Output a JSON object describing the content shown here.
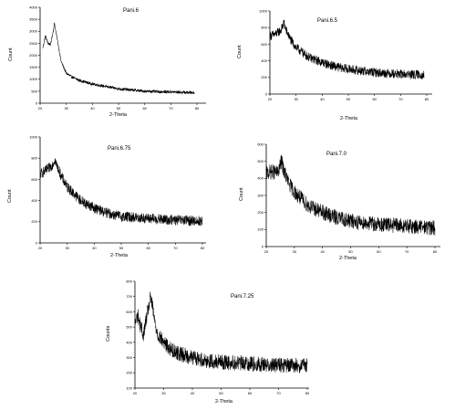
{
  "chart_data": [
    {
      "type": "line",
      "title": "Pani.6",
      "xlabel": "2-Theta",
      "ylabel": "Count",
      "xlim": [
        20,
        80
      ],
      "ylim": [
        0,
        4000
      ],
      "xticks": [
        20,
        30,
        40,
        50,
        60,
        70,
        80
      ],
      "yticks": [
        0,
        500,
        1000,
        1500,
        2000,
        2500,
        3000,
        3500,
        4000
      ],
      "x": [
        21,
        22,
        23,
        24,
        25,
        25.5,
        26,
        27,
        28,
        29,
        30,
        32,
        35,
        40,
        45,
        50,
        55,
        60,
        65,
        70,
        75,
        79
      ],
      "y": [
        2300,
        2800,
        2500,
        2450,
        3000,
        3350,
        3000,
        2400,
        1750,
        1500,
        1250,
        1100,
        950,
        800,
        700,
        600,
        550,
        500,
        480,
        470,
        450,
        440
      ],
      "noise": 60
    },
    {
      "type": "line",
      "title": "Pani.6.5",
      "xlabel": "2-Theta",
      "ylabel": "Count",
      "xlim": [
        20,
        80
      ],
      "ylim": [
        0,
        1000
      ],
      "xticks": [
        20,
        30,
        40,
        50,
        60,
        70,
        80
      ],
      "yticks": [
        0,
        200,
        400,
        600,
        800,
        1000
      ],
      "x": [
        20,
        22,
        24,
        25,
        25.5,
        26,
        28,
        30,
        35,
        40,
        45,
        50,
        55,
        60,
        65,
        70,
        75,
        79
      ],
      "y": [
        700,
        720,
        760,
        820,
        860,
        780,
        650,
        560,
        440,
        380,
        330,
        300,
        280,
        260,
        250,
        240,
        235,
        230
      ],
      "noise": 55
    },
    {
      "type": "line",
      "title": "Pani.6.75",
      "xlabel": "2-Theta",
      "ylabel": "Count",
      "xlim": [
        20,
        80
      ],
      "ylim": [
        0,
        1000
      ],
      "xticks": [
        20,
        30,
        40,
        50,
        60,
        70,
        80
      ],
      "yticks": [
        0,
        200,
        400,
        600,
        800,
        1000
      ],
      "x": [
        20,
        22,
        24,
        25,
        25.5,
        26,
        28,
        30,
        35,
        40,
        45,
        50,
        55,
        60,
        65,
        70,
        75,
        80
      ],
      "y": [
        650,
        680,
        720,
        760,
        790,
        740,
        620,
        530,
        400,
        330,
        280,
        250,
        240,
        230,
        220,
        215,
        210,
        205
      ],
      "noise": 50
    },
    {
      "type": "line",
      "title": "Pani.7.0",
      "xlabel": "2-Theta",
      "ylabel": "Count",
      "xlim": [
        20,
        80
      ],
      "ylim": [
        0,
        600
      ],
      "xticks": [
        20,
        30,
        40,
        50,
        60,
        70,
        80
      ],
      "yticks": [
        0,
        100,
        200,
        300,
        400,
        500,
        600
      ],
      "x": [
        20,
        22,
        24,
        25,
        25.5,
        26,
        28,
        30,
        35,
        40,
        45,
        50,
        55,
        60,
        65,
        70,
        75,
        80
      ],
      "y": [
        430,
        440,
        430,
        480,
        500,
        460,
        370,
        320,
        240,
        200,
        170,
        150,
        140,
        130,
        125,
        120,
        115,
        110
      ],
      "noise": 45
    },
    {
      "type": "line",
      "title": "Pani.7.25",
      "xlabel": "2-Theta",
      "ylabel": "Counts",
      "xlim": [
        20,
        80
      ],
      "ylim": [
        100,
        800
      ],
      "xticks": [
        20,
        30,
        40,
        50,
        60,
        70,
        80
      ],
      "yticks": [
        100,
        200,
        300,
        400,
        500,
        600,
        700,
        800
      ],
      "x": [
        20,
        21,
        22,
        23,
        24,
        25,
        25.5,
        26,
        27,
        28,
        30,
        32,
        35,
        40,
        45,
        50,
        55,
        60,
        65,
        70,
        75,
        80
      ],
      "y": [
        520,
        580,
        500,
        450,
        560,
        650,
        700,
        640,
        520,
        450,
        400,
        360,
        330,
        300,
        280,
        270,
        265,
        260,
        255,
        250,
        248,
        245
      ],
      "noise": 50
    }
  ]
}
